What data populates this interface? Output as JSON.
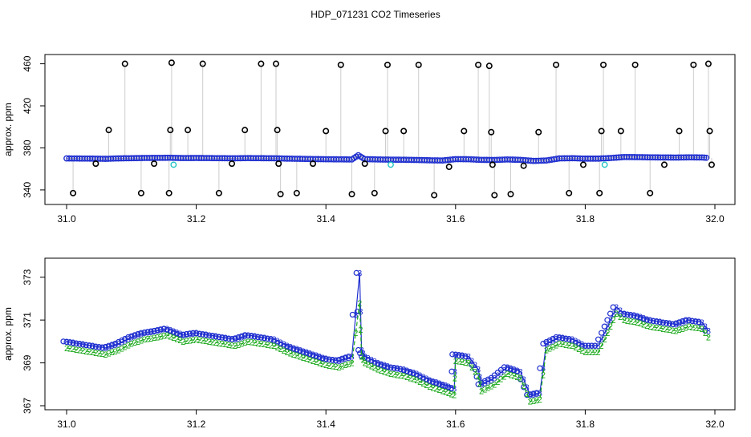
{
  "title": "HDP_071231  CO2 Timeseries",
  "colors": {
    "axis": "#000000",
    "raw_line": "#9a9a9a",
    "raw_points": "#000000",
    "filtered_points": "#1f2fcf",
    "flag_points": "#22c5c5",
    "series3": "#1f2fcf",
    "series2": "#1aa81a"
  },
  "chart_data": [
    {
      "type": "scatter",
      "ylabel": "approx. ppm",
      "xlim": [
        31.0,
        32.0
      ],
      "ylim": [
        330,
        465
      ],
      "xticks": [
        31.0,
        31.2,
        31.4,
        31.6,
        31.8,
        32.0
      ],
      "x_tick_labels": [
        "31.0",
        "31.2",
        "31.4",
        "31.6",
        "31.8",
        "32.0"
      ],
      "yticks": [
        340,
        380,
        420,
        460
      ],
      "y_tick_labels": [
        "340",
        "380",
        "420",
        "460"
      ],
      "series": [
        {
          "x": [
            31.0,
            31.02,
            31.04,
            31.06,
            31.08,
            31.1,
            31.12,
            31.14,
            31.16,
            31.18,
            31.2,
            31.22,
            31.24,
            31.26,
            31.28,
            31.3,
            31.32,
            31.34,
            31.36,
            31.38,
            31.4,
            31.42,
            31.44,
            31.45,
            31.46,
            31.48,
            31.5,
            31.52,
            31.54,
            31.56,
            31.58,
            31.6,
            31.62,
            31.64,
            31.66,
            31.68,
            31.7,
            31.72,
            31.74,
            31.76,
            31.78,
            31.8,
            31.82,
            31.84,
            31.86,
            31.88,
            31.9,
            31.92,
            31.94,
            31.96,
            31.98,
            31.99
          ],
          "values": [
            370.0,
            369.9,
            369.8,
            369.6,
            370.0,
            370.2,
            370.4,
            370.5,
            370.6,
            370.3,
            370.4,
            370.3,
            370.2,
            370.1,
            370.3,
            370.2,
            370.1,
            369.8,
            369.6,
            369.4,
            369.2,
            369.1,
            369.0,
            373.0,
            369.3,
            369.0,
            368.8,
            368.7,
            368.5,
            368.2,
            368.0,
            369.3,
            369.2,
            368.6,
            368.5,
            369.0,
            368.6,
            367.6,
            368.0,
            370.0,
            370.2,
            369.8,
            369.8,
            370.4,
            371.3,
            371.2,
            371.0,
            370.9,
            370.8,
            371.0,
            370.9,
            370.5
          ]
        }
      ],
      "raw_spikes": {
        "x": [
          31.01,
          31.045,
          31.065,
          31.09,
          31.115,
          31.135,
          31.158,
          31.16,
          31.162,
          31.187,
          31.21,
          31.235,
          31.255,
          31.275,
          31.3,
          31.323,
          31.325,
          31.327,
          31.33,
          31.355,
          31.38,
          31.4,
          31.423,
          31.44,
          31.46,
          31.475,
          31.492,
          31.495,
          31.52,
          31.543,
          31.567,
          31.59,
          31.613,
          31.635,
          31.652,
          31.655,
          31.657,
          31.66,
          31.685,
          31.705,
          31.728,
          31.755,
          31.775,
          31.797,
          31.822,
          31.825,
          31.828,
          31.855,
          31.877,
          31.9,
          31.922,
          31.945,
          31.967,
          31.99,
          31.992,
          31.995
        ],
        "values": [
          337,
          365,
          397,
          460,
          337,
          365,
          337,
          397,
          461,
          397,
          460,
          337,
          365,
          397,
          460,
          460,
          397,
          365,
          336,
          337,
          365,
          396,
          459,
          336,
          365,
          337,
          396,
          459,
          396,
          459,
          335,
          362,
          396,
          459,
          458,
          395,
          364,
          335,
          336,
          363,
          395,
          459,
          337,
          364,
          337,
          396,
          459,
          396,
          459,
          337,
          364,
          396,
          459,
          460,
          396,
          364
        ]
      }
    },
    {
      "type": "line",
      "ylabel": "approx. ppm",
      "xlim": [
        31.0,
        32.0
      ],
      "ylim": [
        367,
        373.7
      ],
      "xticks": [
        31.0,
        31.2,
        31.4,
        31.6,
        31.8,
        32.0
      ],
      "x_tick_labels": [
        "31.0",
        "31.2",
        "31.4",
        "31.6",
        "31.8",
        "32.0"
      ],
      "yticks": [
        367,
        369,
        371,
        373
      ],
      "y_tick_labels": [
        "367",
        "369",
        "371",
        "373"
      ],
      "series_markers": [
        "3",
        "2"
      ],
      "series": [
        {
          "x": [
            31.0,
            31.02,
            31.04,
            31.06,
            31.08,
            31.1,
            31.12,
            31.14,
            31.155,
            31.18,
            31.2,
            31.22,
            31.24,
            31.26,
            31.28,
            31.3,
            31.32,
            31.34,
            31.36,
            31.38,
            31.4,
            31.42,
            31.44,
            31.452,
            31.455,
            31.46,
            31.48,
            31.5,
            31.52,
            31.54,
            31.56,
            31.58,
            31.598,
            31.6,
            31.62,
            31.635,
            31.64,
            31.66,
            31.68,
            31.7,
            31.715,
            31.73,
            31.74,
            31.76,
            31.78,
            31.8,
            31.82,
            31.83,
            31.848,
            31.86,
            31.88,
            31.9,
            31.92,
            31.94,
            31.96,
            31.98,
            31.99
          ],
          "values": [
            370.0,
            369.9,
            369.8,
            369.7,
            369.9,
            370.2,
            370.4,
            370.5,
            370.6,
            370.3,
            370.4,
            370.3,
            370.2,
            370.1,
            370.3,
            370.2,
            370.1,
            369.8,
            369.6,
            369.4,
            369.2,
            369.1,
            369.3,
            373.2,
            369.6,
            369.3,
            369.0,
            368.8,
            368.7,
            368.5,
            368.2,
            368.0,
            367.8,
            369.4,
            369.3,
            368.7,
            368.0,
            368.3,
            368.8,
            368.6,
            367.5,
            367.6,
            369.9,
            370.2,
            370.1,
            369.8,
            369.8,
            370.4,
            371.6,
            371.3,
            371.2,
            371.0,
            370.9,
            370.8,
            371.0,
            370.9,
            370.5
          ]
        },
        {
          "x": [
            31.0,
            31.02,
            31.04,
            31.06,
            31.08,
            31.1,
            31.12,
            31.14,
            31.155,
            31.18,
            31.2,
            31.22,
            31.24,
            31.26,
            31.28,
            31.3,
            31.32,
            31.34,
            31.36,
            31.38,
            31.4,
            31.42,
            31.44,
            31.452,
            31.455,
            31.46,
            31.48,
            31.5,
            31.52,
            31.54,
            31.56,
            31.58,
            31.598,
            31.6,
            31.62,
            31.635,
            31.64,
            31.66,
            31.68,
            31.7,
            31.715,
            31.73,
            31.74,
            31.76,
            31.78,
            31.8,
            31.82,
            31.83,
            31.848,
            31.86,
            31.88,
            31.9,
            31.92,
            31.94,
            31.96,
            31.98,
            31.99
          ],
          "values": [
            369.7,
            369.6,
            369.5,
            369.4,
            369.6,
            369.9,
            370.1,
            370.2,
            370.3,
            370.0,
            370.1,
            370.0,
            369.9,
            369.8,
            370.0,
            369.9,
            369.8,
            369.5,
            369.3,
            369.1,
            368.9,
            368.8,
            369.0,
            371.8,
            369.3,
            369.0,
            368.7,
            368.5,
            368.4,
            368.2,
            367.9,
            367.7,
            367.5,
            369.1,
            369.0,
            368.4,
            367.7,
            368.0,
            368.5,
            368.3,
            367.2,
            367.3,
            369.6,
            369.9,
            369.8,
            369.5,
            369.5,
            370.1,
            371.3,
            371.0,
            370.9,
            370.7,
            370.6,
            370.5,
            370.7,
            370.6,
            370.2
          ]
        }
      ]
    }
  ]
}
